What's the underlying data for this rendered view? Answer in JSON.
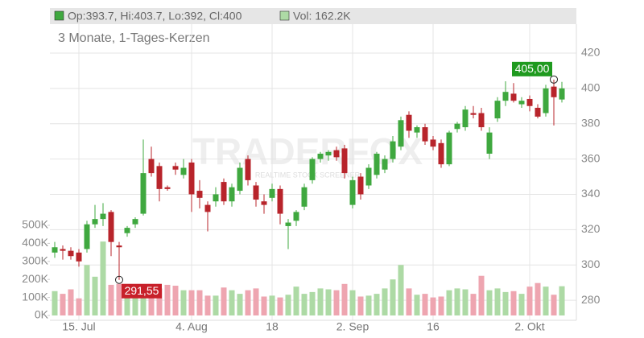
{
  "chart_data": {
    "type": "candlestick",
    "header": {
      "ohlc": "Op:393.7, Hi:403.7, Lo:392, Cl:400",
      "volume": "Vol: 162.2K"
    },
    "subtitle": "3 Monate, 1-Tages-Kerzen",
    "watermark": "TRADERFOX",
    "watermark_tagline": "REALTIME STOCK SCREENER",
    "categories": [
      null,
      null,
      null,
      "15. Jul",
      null,
      null,
      null,
      null,
      null,
      null,
      null,
      null,
      null,
      null,
      null,
      null,
      null,
      "4. Aug",
      null,
      null,
      null,
      null,
      null,
      null,
      null,
      null,
      null,
      "18",
      null,
      null,
      null,
      null,
      null,
      null,
      null,
      null,
      null,
      "2. Sep",
      null,
      null,
      null,
      null,
      null,
      null,
      null,
      null,
      null,
      "16",
      null,
      null,
      null,
      null,
      null,
      null,
      null,
      null,
      null,
      null,
      null,
      "2. Okt",
      null,
      null,
      null,
      null
    ],
    "open": [
      307,
      309,
      308,
      307,
      309,
      323,
      326,
      330,
      311,
      318,
      323,
      329,
      360,
      356,
      344,
      356,
      351,
      358,
      342,
      334,
      336,
      347,
      336,
      342,
      360,
      345,
      336,
      338,
      343,
      322,
      325,
      333,
      348,
      360,
      362,
      365,
      366,
      334,
      350,
      345,
      351,
      354,
      360,
      367,
      385,
      375,
      378,
      371,
      369,
      357,
      377,
      378,
      386,
      386,
      363,
      383,
      393,
      397,
      391,
      394,
      389,
      386,
      401,
      393.7
    ],
    "high": [
      313,
      311,
      310,
      309,
      325,
      334,
      335,
      331,
      313,
      322,
      327,
      371,
      367,
      358,
      345,
      358,
      360,
      360,
      348,
      336,
      344,
      349,
      346,
      358,
      362,
      347,
      340,
      346,
      345,
      326,
      331,
      346,
      361,
      364,
      365,
      367,
      368,
      350,
      352,
      357,
      364,
      362,
      373,
      384,
      387,
      379,
      380,
      373,
      371,
      376,
      381,
      390,
      390,
      389,
      378,
      395,
      404,
      403,
      395,
      396,
      391,
      402,
      405,
      403.7
    ],
    "low": [
      304,
      303,
      303,
      299,
      307,
      321,
      322,
      305,
      291.55,
      316,
      321,
      328,
      350,
      336,
      342,
      351,
      349,
      330,
      332,
      319,
      333,
      334,
      333,
      340,
      345,
      333,
      329,
      336,
      323,
      309,
      322,
      331,
      346,
      358,
      359,
      359,
      349,
      332,
      337,
      343,
      349,
      352,
      358,
      365,
      372,
      372,
      368,
      365,
      355,
      356,
      375,
      376,
      383,
      376,
      360,
      381,
      390,
      392,
      389,
      387,
      383,
      384,
      379,
      392
    ],
    "close": [
      310,
      308,
      305,
      302,
      323,
      326,
      329,
      313,
      310,
      321,
      326,
      352,
      352,
      343,
      343,
      354,
      355,
      340,
      338,
      330,
      340,
      336,
      344,
      355,
      348,
      337,
      334,
      343,
      329,
      324,
      330,
      344,
      360,
      363,
      364,
      361,
      352,
      348,
      340,
      355,
      363,
      360,
      370,
      382,
      376,
      378,
      370,
      367,
      357,
      375,
      380,
      388,
      385,
      378,
      375,
      393,
      398,
      393,
      393,
      390,
      384,
      400,
      395,
      400
    ],
    "volume": [
      135,
      120,
      145,
      95,
      280,
      215,
      410,
      170,
      175,
      120,
      150,
      130,
      130,
      150,
      170,
      165,
      140,
      140,
      140,
      110,
      110,
      155,
      140,
      120,
      140,
      150,
      105,
      110,
      100,
      115,
      160,
      120,
      130,
      150,
      145,
      140,
      175,
      140,
      105,
      110,
      120,
      150,
      200,
      280,
      150,
      115,
      120,
      100,
      105,
      140,
      150,
      145,
      120,
      220,
      140,
      150,
      130,
      135,
      120,
      160,
      180,
      160,
      115,
      162.2
    ],
    "up_color": "#3fa83f",
    "down_color": "#b8242b",
    "volume_up_color": "#addaa5",
    "volume_down_color": "#eea5b0",
    "ylim": [
      270,
      430
    ],
    "yticks": [
      280,
      300,
      320,
      340,
      360,
      380,
      400,
      420
    ],
    "volume_ylim": [
      0,
      500
    ],
    "volume_yticks": [
      {
        "value": 0,
        "label": "0K"
      },
      {
        "value": 100,
        "label": "100K"
      },
      {
        "value": 200,
        "label": "200K"
      },
      {
        "value": 300,
        "label": "300K"
      },
      {
        "value": 400,
        "label": "400K"
      },
      {
        "value": 500,
        "label": "500K"
      }
    ],
    "grid": true,
    "annotations": [
      {
        "label": "405,00",
        "value": 405,
        "index": 62,
        "color": "#1f9a1f"
      },
      {
        "label": "291,55",
        "value": 291.55,
        "index": 8,
        "color": "#c8202a"
      }
    ]
  }
}
